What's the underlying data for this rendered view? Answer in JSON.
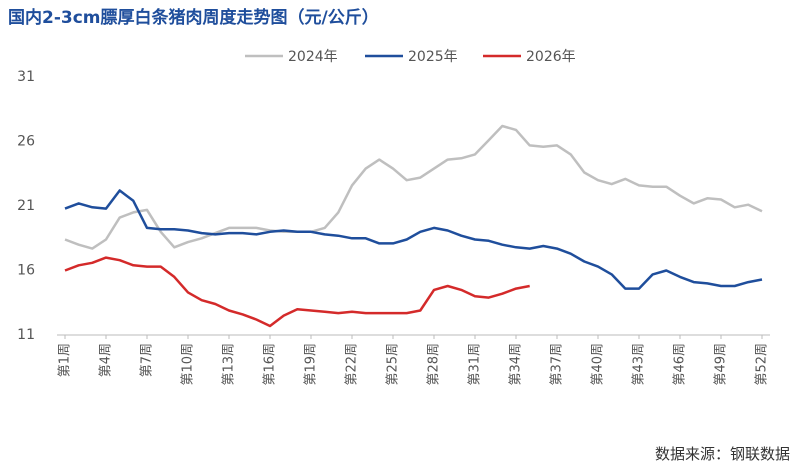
{
  "chart_data": {
    "type": "line",
    "title": "国内2-3cm膘厚白条猪肉周度走势图（元/公斤）",
    "source": "数据来源：钢联数据",
    "categories": [
      "第1周",
      null,
      null,
      "第4周",
      null,
      null,
      "第7周",
      null,
      null,
      "第10周",
      null,
      null,
      "第13周",
      null,
      null,
      "第16周",
      null,
      null,
      "第19周",
      null,
      null,
      "第22周",
      null,
      null,
      "第25周",
      null,
      null,
      "第28周",
      null,
      null,
      "第31周",
      null,
      null,
      "第34周",
      null,
      null,
      "第37周",
      null,
      null,
      "第40周",
      null,
      null,
      "第43周",
      null,
      null,
      "第46周",
      null,
      null,
      "第49周",
      null,
      null,
      "第52周"
    ],
    "series": [
      {
        "name": "2024年",
        "color": "#bfbfbf",
        "values": [
          18.4,
          18.0,
          17.7,
          18.4,
          20.1,
          20.5,
          20.7,
          19.0,
          17.8,
          18.2,
          18.5,
          18.9,
          19.3,
          19.3,
          19.3,
          19.1,
          19.0,
          19.0,
          19.0,
          19.3,
          20.5,
          22.6,
          23.9,
          24.6,
          23.9,
          23.0,
          23.2,
          23.9,
          24.6,
          24.7,
          25.0,
          26.1,
          27.2,
          26.9,
          25.7,
          25.6,
          25.7,
          25.0,
          23.6,
          23.0,
          22.7,
          23.1,
          22.6,
          22.5,
          22.5,
          21.8,
          21.2,
          21.6,
          21.5,
          20.9,
          21.1,
          20.6
        ]
      },
      {
        "name": "2025年",
        "color": "#1f4e9c",
        "values": [
          20.8,
          21.2,
          20.9,
          20.8,
          22.2,
          21.4,
          19.3,
          19.2,
          19.2,
          19.1,
          18.9,
          18.8,
          18.9,
          18.9,
          18.8,
          19.0,
          19.1,
          19.0,
          19.0,
          18.8,
          18.7,
          18.5,
          18.5,
          18.1,
          18.1,
          18.4,
          19.0,
          19.3,
          19.1,
          18.7,
          18.4,
          18.3,
          18.0,
          17.8,
          17.7,
          17.9,
          17.7,
          17.3,
          16.7,
          16.3,
          15.7,
          14.6,
          14.6,
          15.7,
          16.0,
          15.5,
          15.1,
          15.0,
          14.8,
          14.8,
          15.1,
          15.3
        ]
      },
      {
        "name": "2026年",
        "color": "#d42a2a",
        "values": [
          16.0,
          16.4,
          16.6,
          17.0,
          16.8,
          16.4,
          16.3,
          16.3,
          15.5,
          14.3,
          13.7,
          13.4,
          12.9,
          12.6,
          12.2,
          11.7,
          12.5,
          13.0,
          12.9,
          12.8,
          12.7,
          12.8,
          12.7,
          12.7,
          12.7,
          12.7,
          12.9,
          14.5,
          14.8,
          14.5,
          14.0,
          13.9,
          14.2,
          14.6,
          14.8,
          null,
          null,
          null,
          null,
          null,
          null,
          null,
          null,
          null,
          null,
          null,
          null,
          null,
          null,
          null,
          null,
          null
        ]
      }
    ],
    "ylim": [
      11,
      31
    ],
    "yticks": [
      11,
      16,
      21,
      26,
      31
    ],
    "grid": false,
    "legend": "top"
  }
}
